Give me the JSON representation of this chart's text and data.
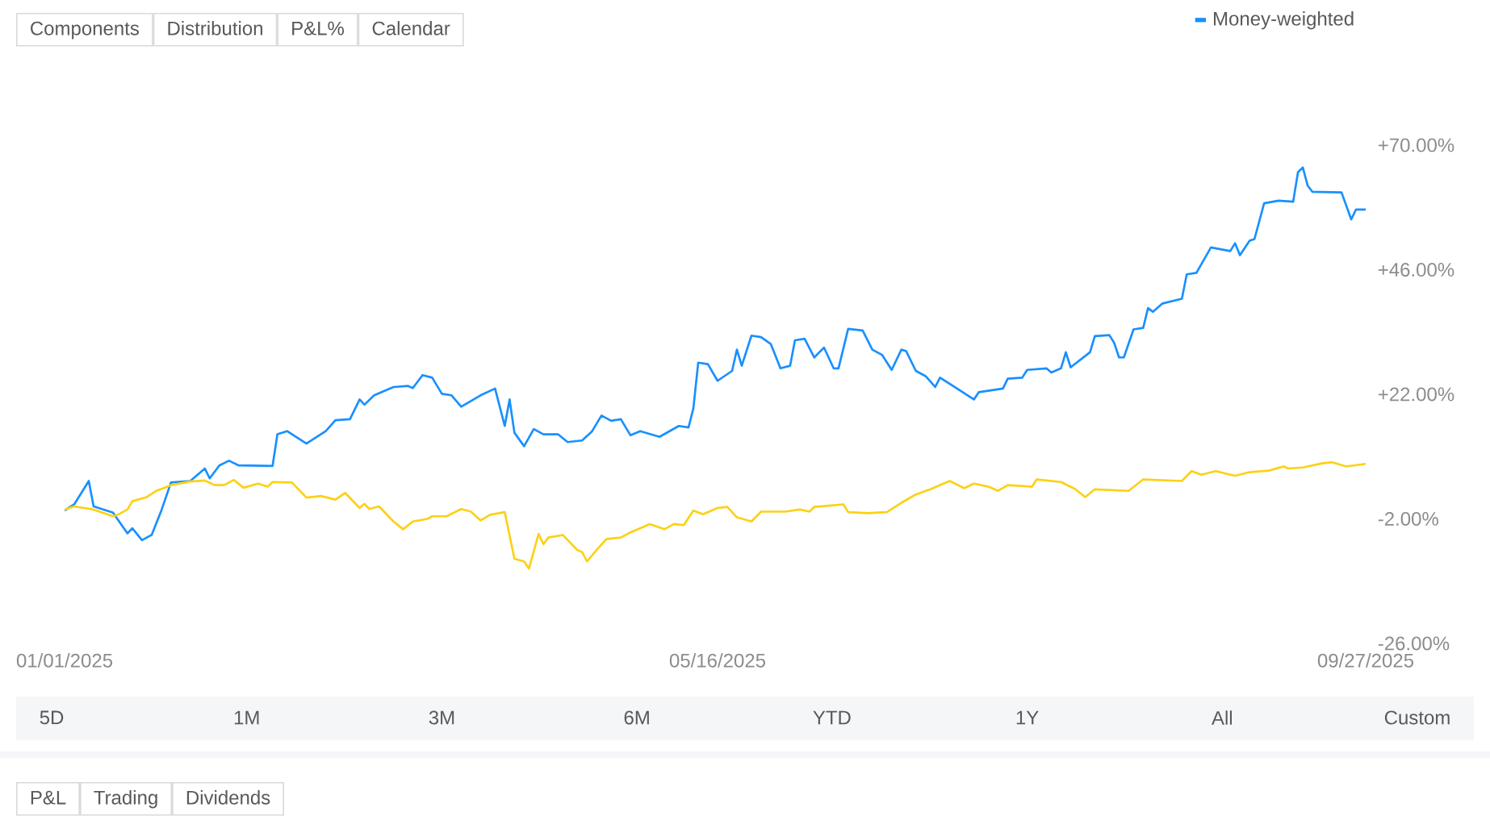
{
  "chart_data": {
    "type": "line",
    "annotations": [
      "Components",
      "Distribution",
      "P&L%",
      "Calendar",
      "5D",
      "1M",
      "3M",
      "6M",
      "YTD",
      "1Y",
      "All",
      "Custom",
      "P&L",
      "Trading",
      "Dividends"
    ],
    "xlim": [
      "2025-01-01",
      "2025-09-27"
    ],
    "xticks": [
      {
        "value": "2025-01-01",
        "label": "01/01/2025"
      },
      {
        "value": "2025-05-16",
        "label": "05/16/2025"
      },
      {
        "value": "2025-09-27",
        "label": "09/27/2025"
      }
    ],
    "ylim": [
      -26,
      70
    ],
    "yticks": [
      {
        "value": -26,
        "label": "-26.00%"
      },
      {
        "value": -2,
        "label": "-2.00%"
      },
      {
        "value": 22,
        "label": "+22.00%"
      },
      {
        "value": 46,
        "label": "+46.00%"
      },
      {
        "value": 70,
        "label": "+70.00%"
      }
    ],
    "legend": "top right",
    "series": [
      {
        "name": "Money-weighted",
        "color": "#1890ff",
        "x": [
          "2025-01-01",
          "2025-01-03",
          "2025-01-06",
          "2025-01-07",
          "2025-01-11",
          "2025-01-14",
          "2025-01-15",
          "2025-01-17",
          "2025-01-19",
          "2025-01-21",
          "2025-01-23",
          "2025-01-27",
          "2025-01-30",
          "2025-01-31",
          "2025-02-02",
          "2025-02-04",
          "2025-02-06",
          "2025-02-13",
          "2025-02-14",
          "2025-02-16",
          "2025-02-20",
          "2025-02-24",
          "2025-02-26",
          "2025-03-01",
          "2025-03-03",
          "2025-03-04",
          "2025-03-06",
          "2025-03-10",
          "2025-03-13",
          "2025-03-14",
          "2025-03-16",
          "2025-03-18",
          "2025-03-20",
          "2025-03-22",
          "2025-03-24",
          "2025-03-28",
          "2025-03-31",
          "2025-04-02",
          "2025-04-03",
          "2025-04-04",
          "2025-04-06",
          "2025-04-08",
          "2025-04-10",
          "2025-04-13",
          "2025-04-15",
          "2025-04-18",
          "2025-04-20",
          "2025-04-22",
          "2025-04-24",
          "2025-04-26",
          "2025-04-28",
          "2025-04-30",
          "2025-05-04",
          "2025-05-08",
          "2025-05-10",
          "2025-05-11",
          "2025-05-12",
          "2025-05-14",
          "2025-05-16",
          "2025-05-19",
          "2025-05-20",
          "2025-05-21",
          "2025-05-23",
          "2025-05-25",
          "2025-05-27",
          "2025-05-29",
          "2025-05-31",
          "2025-06-01",
          "2025-06-03",
          "2025-06-05",
          "2025-06-07",
          "2025-06-09",
          "2025-06-10",
          "2025-06-12",
          "2025-06-15",
          "2025-06-17",
          "2025-06-19",
          "2025-06-21",
          "2025-06-23",
          "2025-06-24",
          "2025-06-26",
          "2025-06-28",
          "2025-06-30",
          "2025-07-01",
          "2025-07-04",
          "2025-07-08",
          "2025-07-09",
          "2025-07-14",
          "2025-07-15",
          "2025-07-18",
          "2025-07-19",
          "2025-07-23",
          "2025-07-24",
          "2025-07-26",
          "2025-07-27",
          "2025-07-28",
          "2025-08-01",
          "2025-08-02",
          "2025-08-05",
          "2025-08-06",
          "2025-08-07",
          "2025-08-08",
          "2025-08-10",
          "2025-08-12",
          "2025-08-13",
          "2025-08-14",
          "2025-08-16",
          "2025-08-20",
          "2025-08-21",
          "2025-08-23",
          "2025-08-26",
          "2025-08-30",
          "2025-08-31",
          "2025-09-01",
          "2025-09-03",
          "2025-09-04",
          "2025-09-06",
          "2025-09-09",
          "2025-09-12",
          "2025-09-13",
          "2025-09-14",
          "2025-09-15",
          "2025-09-16",
          "2025-09-22",
          "2025-09-24",
          "2025-09-25",
          "2025-09-27"
        ],
        "values": [
          -0.4,
          0.8,
          5.3,
          0.4,
          -0.8,
          -4.8,
          -3.8,
          -6.1,
          -5.1,
          -0.4,
          5.0,
          5.3,
          7.7,
          5.8,
          8.3,
          9.2,
          8.3,
          8.2,
          14.3,
          14.9,
          12.5,
          14.9,
          17.0,
          17.2,
          21.0,
          20.0,
          21.8,
          23.4,
          23.6,
          23.2,
          25.7,
          25.2,
          22.1,
          21.8,
          19.6,
          21.8,
          23.1,
          15.9,
          21.0,
          14.6,
          12.0,
          15.3,
          14.3,
          14.3,
          12.8,
          13.1,
          14.8,
          17.9,
          16.9,
          17.2,
          14.1,
          14.9,
          13.8,
          15.9,
          15.6,
          19.3,
          28.1,
          27.8,
          24.6,
          26.5,
          30.6,
          27.5,
          33.3,
          33.0,
          31.7,
          27.0,
          27.5,
          32.4,
          32.7,
          29.1,
          31.0,
          27.0,
          27.0,
          34.6,
          34.3,
          30.6,
          29.6,
          26.7,
          30.6,
          30.3,
          26.5,
          25.5,
          23.4,
          25.2,
          23.4,
          21.0,
          22.4,
          23.1,
          25.0,
          25.2,
          26.7,
          27.0,
          26.2,
          27.0,
          30.1,
          27.2,
          30.1,
          33.2,
          33.4,
          31.9,
          29.1,
          29.1,
          34.5,
          34.8,
          38.6,
          37.9,
          39.5,
          40.4,
          45.1,
          45.4,
          50.3,
          49.6,
          51.1,
          48.8,
          51.6,
          51.9,
          58.8,
          59.3,
          59.1,
          64.8,
          65.7,
          62.2,
          61.0,
          60.9,
          55.7,
          57.6,
          57.6
        ]
      },
      {
        "color": "#fcd116",
        "x": [
          "2025-01-01",
          "2025-01-03",
          "2025-01-07",
          "2025-01-11",
          "2025-01-12",
          "2025-01-14",
          "2025-01-15",
          "2025-01-18",
          "2025-01-20",
          "2025-01-23",
          "2025-01-27",
          "2025-01-30",
          "2025-02-01",
          "2025-02-03",
          "2025-02-05",
          "2025-02-07",
          "2025-02-10",
          "2025-02-12",
          "2025-02-13",
          "2025-02-17",
          "2025-02-20",
          "2025-02-23",
          "2025-02-26",
          "2025-02-28",
          "2025-03-03",
          "2025-03-04",
          "2025-03-05",
          "2025-03-07",
          "2025-03-10",
          "2025-03-12",
          "2025-03-14",
          "2025-03-17",
          "2025-03-18",
          "2025-03-21",
          "2025-03-24",
          "2025-03-26",
          "2025-03-28",
          "2025-03-30",
          "2025-04-02",
          "2025-04-04",
          "2025-04-06",
          "2025-04-07",
          "2025-04-09",
          "2025-04-10",
          "2025-04-11",
          "2025-04-14",
          "2025-04-17",
          "2025-04-18",
          "2025-04-19",
          "2025-04-21",
          "2025-04-23",
          "2025-04-26",
          "2025-04-28",
          "2025-05-02",
          "2025-05-05",
          "2025-05-07",
          "2025-05-09",
          "2025-05-11",
          "2025-05-13",
          "2025-05-16",
          "2025-05-18",
          "2025-05-20",
          "2025-05-23",
          "2025-05-25",
          "2025-05-30",
          "2025-06-02",
          "2025-06-04",
          "2025-06-05",
          "2025-06-11",
          "2025-06-12",
          "2025-06-16",
          "2025-06-20",
          "2025-06-23",
          "2025-06-26",
          "2025-06-29",
          "2025-07-03",
          "2025-07-06",
          "2025-07-08",
          "2025-07-11",
          "2025-07-13",
          "2025-07-15",
          "2025-07-20",
          "2025-07-21",
          "2025-07-26",
          "2025-07-29",
          "2025-07-31",
          "2025-08-02",
          "2025-08-09",
          "2025-08-12",
          "2025-08-20",
          "2025-08-22",
          "2025-08-24",
          "2025-08-27",
          "2025-08-31",
          "2025-09-03",
          "2025-09-07",
          "2025-09-10",
          "2025-09-11",
          "2025-09-14",
          "2025-09-18",
          "2025-09-20",
          "2025-09-23",
          "2025-09-27"
        ],
        "values": [
          -0.2,
          0.4,
          -0.2,
          -1.5,
          -1.2,
          -0.2,
          1.4,
          2.2,
          3.4,
          4.5,
          5.2,
          5.4,
          4.5,
          4.5,
          5.5,
          4.0,
          4.8,
          4.2,
          5.1,
          5.0,
          2.1,
          2.4,
          1.7,
          3.0,
          0.1,
          0.9,
          -0.1,
          0.4,
          -2.5,
          -4.0,
          -2.5,
          -2.0,
          -1.5,
          -1.5,
          -0.1,
          -0.6,
          -2.3,
          -1.2,
          -0.7,
          -9.7,
          -10.2,
          -11.6,
          -4.9,
          -6.9,
          -5.6,
          -5.1,
          -8.0,
          -8.4,
          -10.2,
          -8.0,
          -5.9,
          -5.6,
          -4.6,
          -3.0,
          -4.0,
          -3.0,
          -3.2,
          -0.4,
          -1.1,
          0.1,
          0.3,
          -1.7,
          -2.5,
          -0.6,
          -0.6,
          -0.2,
          -0.6,
          0.3,
          0.8,
          -0.7,
          -0.9,
          -0.7,
          1.1,
          2.7,
          3.7,
          5.3,
          3.9,
          4.8,
          4.2,
          3.4,
          4.5,
          4.2,
          5.6,
          5.1,
          3.7,
          2.2,
          3.7,
          3.4,
          5.6,
          5.3,
          7.2,
          6.5,
          7.2,
          6.3,
          7.0,
          7.3,
          8.1,
          7.7,
          7.9,
          8.7,
          8.9,
          8.1,
          8.6
        ]
      }
    ]
  }
}
